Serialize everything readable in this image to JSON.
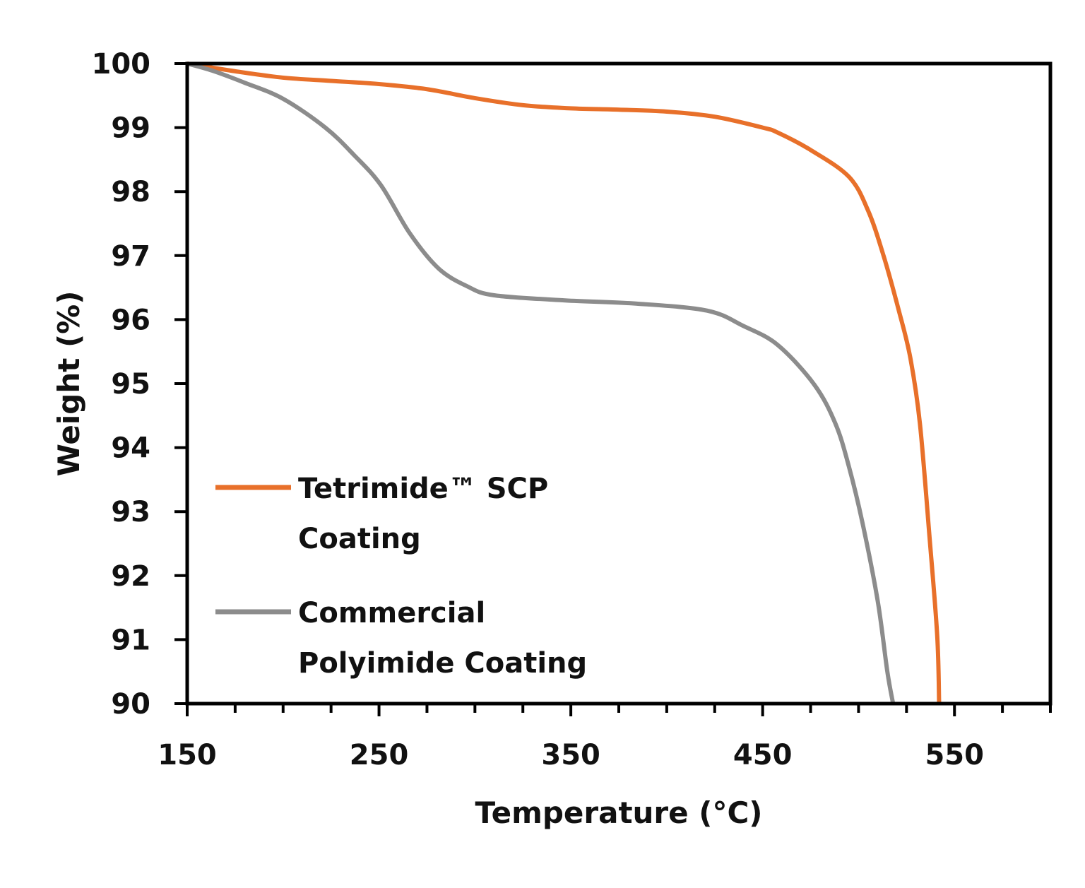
{
  "chart_data": {
    "type": "line",
    "title": "",
    "xlabel": "Temperature (°C)",
    "ylabel": "Weight (%)",
    "xlim": [
      150,
      600
    ],
    "ylim": [
      90,
      100
    ],
    "xticks": [
      150,
      250,
      350,
      450,
      550
    ],
    "xtick_labels": [
      "150",
      "250",
      "350",
      "450",
      "550"
    ],
    "yticks": [
      90,
      91,
      92,
      93,
      94,
      95,
      96,
      97,
      98,
      99,
      100
    ],
    "ytick_labels": [
      "90",
      "91",
      "92",
      "93",
      "94",
      "95",
      "96",
      "97",
      "98",
      "99",
      "100"
    ],
    "grid": false,
    "legend_position": "bottom-left",
    "series": [
      {
        "name": "Tetrimide™ SCP Coating",
        "legend_lines": [
          "Tetrimide™ SCP",
          "Coating"
        ],
        "color": "#E8702A",
        "x": [
          150,
          175,
          200,
          225,
          250,
          275,
          300,
          325,
          350,
          375,
          400,
          425,
          450,
          458,
          475,
          495,
          505,
          513,
          521,
          527,
          532,
          537,
          541,
          542
        ],
        "y": [
          100,
          99.88,
          99.78,
          99.73,
          99.68,
          99.6,
          99.46,
          99.35,
          99.3,
          99.28,
          99.25,
          99.17,
          99.0,
          98.92,
          98.65,
          98.23,
          97.7,
          97.0,
          96.14,
          95.4,
          94.37,
          92.6,
          91.06,
          90
        ]
      },
      {
        "name": "Commercial Polyimide Coating",
        "legend_lines": [
          "Commercial",
          "Polyimide Coating"
        ],
        "color": "#8C8C8C",
        "x": [
          150,
          163,
          180,
          200,
          222,
          237,
          251,
          266,
          281,
          296,
          310,
          347,
          384,
          421,
          440,
          458,
          477,
          488,
          495,
          502,
          510,
          515,
          518
        ],
        "y": [
          100,
          99.89,
          99.7,
          99.45,
          99.0,
          98.57,
          98.1,
          97.35,
          96.8,
          96.52,
          96.38,
          96.3,
          96.25,
          96.14,
          95.9,
          95.6,
          94.98,
          94.37,
          93.7,
          92.83,
          91.6,
          90.5,
          90
        ]
      }
    ]
  }
}
